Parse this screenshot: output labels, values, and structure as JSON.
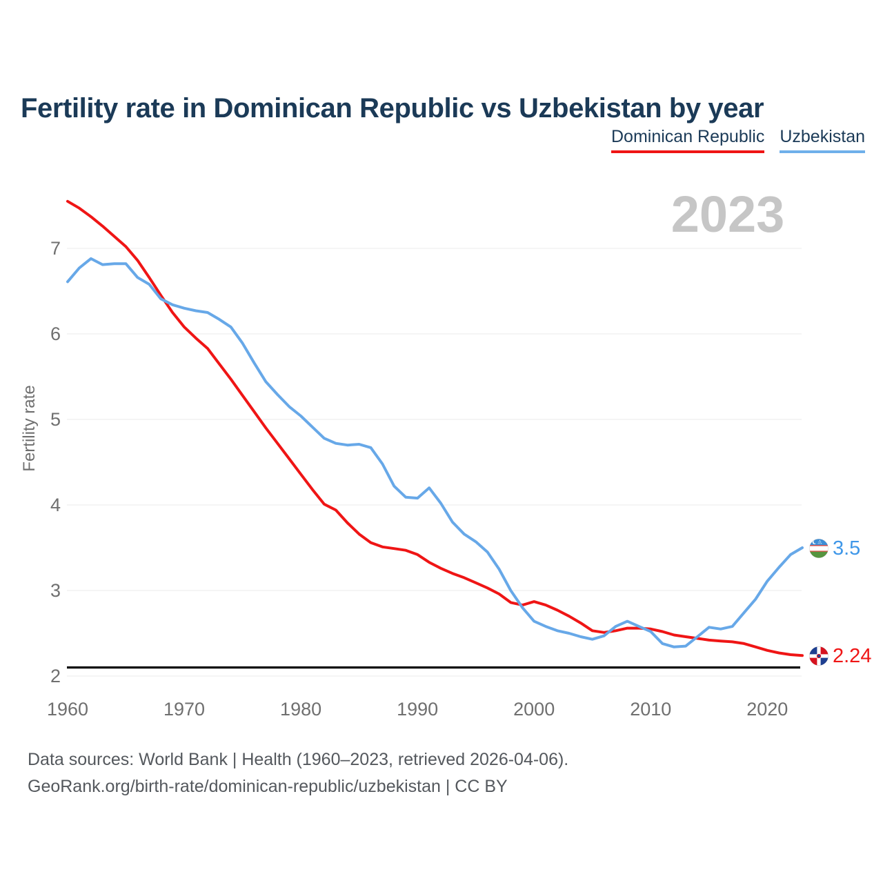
{
  "title": "Fertility rate in Dominican Republic vs Uzbekistan by year",
  "legend": [
    {
      "label": "Dominican Republic",
      "color": "#ef1515"
    },
    {
      "label": "Uzbekistan",
      "color": "#6fb0ea"
    }
  ],
  "watermark": "2023",
  "ylabel": "Fertility rate",
  "end_labels": [
    {
      "series": "Uzbekistan",
      "text": "3.5",
      "color": "#3f97e8"
    },
    {
      "series": "Dominican Republic",
      "text": "2.24",
      "color": "#ef1515"
    }
  ],
  "icons": {
    "uzbekistan_flag": "uzbekistan-flag-icon (circular flag: blue/white/green bands, red separators, crescent)",
    "dominican_republic_flag": "dominican-republic-flag-icon (circular flag: white cross, blue/red quarters)"
  },
  "footer": {
    "line1": "Data sources: World Bank | Health (1960–2023, retrieved 2026-04-06).",
    "line2": "GeoRank.org/birth-rate/dominican-republic/uzbekistan | CC BY"
  },
  "chart_data": {
    "type": "line",
    "title": "Fertility rate in Dominican Republic vs Uzbekistan by year",
    "xlabel": "",
    "ylabel": "Fertility rate",
    "x_ticks": [
      1960,
      1970,
      1980,
      1990,
      2000,
      2010,
      2020
    ],
    "y_ticks": [
      2,
      3,
      4,
      5,
      6,
      7
    ],
    "ylim": [
      1.9,
      7.7
    ],
    "grid": true,
    "grid_color": "#ebebeb",
    "legend_position": "top-right",
    "current_year_label": "2023",
    "reference_line": {
      "value": 2.1,
      "color": "#141414"
    },
    "years": [
      1960,
      1961,
      1962,
      1963,
      1964,
      1965,
      1966,
      1967,
      1968,
      1969,
      1970,
      1971,
      1972,
      1973,
      1974,
      1975,
      1976,
      1977,
      1978,
      1979,
      1980,
      1981,
      1982,
      1983,
      1984,
      1985,
      1986,
      1987,
      1988,
      1989,
      1990,
      1991,
      1992,
      1993,
      1994,
      1995,
      1996,
      1997,
      1998,
      1999,
      2000,
      2001,
      2002,
      2003,
      2004,
      2005,
      2006,
      2007,
      2008,
      2009,
      2010,
      2011,
      2012,
      2013,
      2014,
      2015,
      2016,
      2017,
      2018,
      2019,
      2020,
      2021,
      2022,
      2023
    ],
    "series": [
      {
        "name": "Dominican Republic",
        "color": "#ef1515",
        "end_value_label": "2.24",
        "values": [
          7.55,
          7.47,
          7.37,
          7.26,
          7.14,
          7.02,
          6.86,
          6.66,
          6.45,
          6.25,
          6.08,
          5.95,
          5.83,
          5.65,
          5.47,
          5.28,
          5.09,
          4.9,
          4.72,
          4.54,
          4.36,
          4.18,
          4.01,
          3.94,
          3.79,
          3.66,
          3.56,
          3.51,
          3.49,
          3.47,
          3.42,
          3.33,
          3.26,
          3.2,
          3.15,
          3.09,
          3.03,
          2.96,
          2.86,
          2.83,
          2.87,
          2.83,
          2.77,
          2.7,
          2.62,
          2.53,
          2.51,
          2.53,
          2.56,
          2.56,
          2.55,
          2.52,
          2.48,
          2.46,
          2.44,
          2.42,
          2.41,
          2.4,
          2.38,
          2.34,
          2.3,
          2.27,
          2.25,
          2.24
        ]
      },
      {
        "name": "Uzbekistan",
        "color": "#67a8e8",
        "end_value_label": "3.5",
        "values": [
          6.61,
          6.77,
          6.88,
          6.81,
          6.82,
          6.82,
          6.66,
          6.58,
          6.41,
          6.34,
          6.3,
          6.27,
          6.25,
          6.17,
          6.08,
          5.89,
          5.66,
          5.44,
          5.29,
          5.15,
          5.04,
          4.91,
          4.78,
          4.72,
          4.7,
          4.71,
          4.67,
          4.48,
          4.22,
          4.09,
          4.08,
          4.2,
          4.02,
          3.8,
          3.66,
          3.57,
          3.45,
          3.25,
          3.0,
          2.8,
          2.64,
          2.58,
          2.53,
          2.5,
          2.46,
          2.43,
          2.47,
          2.58,
          2.64,
          2.58,
          2.52,
          2.38,
          2.34,
          2.35,
          2.46,
          2.57,
          2.55,
          2.58,
          2.74,
          2.9,
          3.11,
          3.27,
          3.42,
          3.5
        ]
      }
    ]
  }
}
